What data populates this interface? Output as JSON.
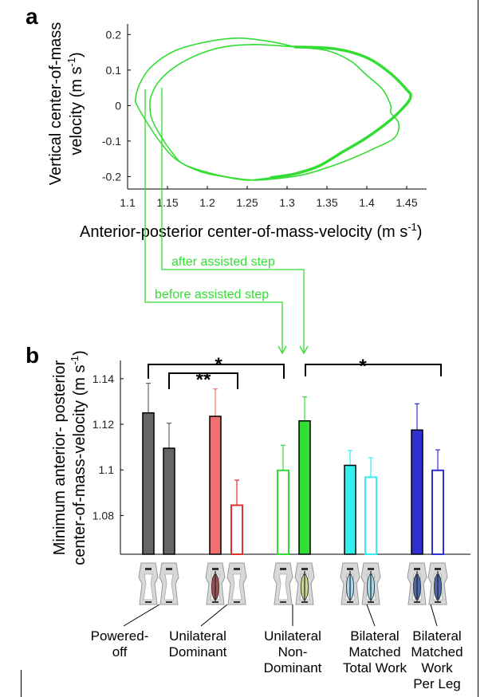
{
  "chart_data": [
    {
      "panel": "a",
      "type": "line",
      "xlabel": "Anterior-posterior center-of-mass-velocity (m s",
      "xlabel_sup": "-1",
      "xlabel_end": ")",
      "ylabel_lines": [
        "Vertical center-of-mass",
        "velocity (m s"
      ],
      "ylabel_sup": "-1",
      "ylabel_end": ")",
      "xticks": [
        "1.1",
        "1.15",
        "1.2",
        "1.25",
        "1.3",
        "1.35",
        "1.4",
        "1.45"
      ],
      "yticks": [
        "0.2",
        "0.1",
        "0",
        "-0.1",
        "-0.2"
      ],
      "xlim": [
        1.1,
        1.475
      ],
      "ylim": [
        -0.235,
        0.23
      ],
      "color": "#33dd33",
      "series": [
        {
          "values": [
            [
              1.31,
              0.165
            ],
            [
              1.36,
              0.16
            ],
            [
              1.4,
              0.135
            ],
            [
              1.43,
              0.09
            ],
            [
              1.45,
              0.045
            ],
            [
              1.455,
              0.028
            ],
            [
              1.45,
              0.005
            ],
            [
              1.43,
              -0.04
            ],
            [
              1.4,
              -0.09
            ],
            [
              1.37,
              -0.13
            ],
            [
              1.34,
              -0.17
            ],
            [
              1.31,
              -0.192
            ],
            [
              1.28,
              -0.203
            ],
            [
              1.25,
              -0.21
            ],
            [
              1.22,
              -0.2
            ],
            [
              1.19,
              -0.185
            ],
            [
              1.16,
              -0.15
            ],
            [
              1.14,
              -0.1
            ],
            [
              1.125,
              -0.05
            ],
            [
              1.112,
              0.0
            ],
            [
              1.11,
              0.02
            ],
            [
              1.115,
              0.06
            ],
            [
              1.13,
              0.11
            ],
            [
              1.16,
              0.155
            ],
            [
              1.2,
              0.18
            ],
            [
              1.24,
              0.19
            ],
            [
              1.28,
              0.18
            ],
            [
              1.31,
              0.165
            ]
          ]
        },
        {
          "values": [
            [
              1.31,
              0.165
            ],
            [
              1.35,
              0.155
            ],
            [
              1.38,
              0.125
            ],
            [
              1.4,
              0.085
            ],
            [
              1.42,
              0.045
            ],
            [
              1.43,
              0.0
            ],
            [
              1.43,
              -0.02
            ],
            [
              1.44,
              -0.05
            ],
            [
              1.435,
              -0.09
            ],
            [
              1.41,
              -0.12
            ],
            [
              1.38,
              -0.15
            ],
            [
              1.35,
              -0.175
            ],
            [
              1.32,
              -0.195
            ],
            [
              1.29,
              -0.205
            ],
            [
              1.26,
              -0.21
            ],
            [
              1.23,
              -0.203
            ],
            [
              1.2,
              -0.188
            ],
            [
              1.17,
              -0.165
            ],
            [
              1.155,
              -0.13
            ],
            [
              1.14,
              -0.08
            ],
            [
              1.13,
              -0.035
            ],
            [
              1.128,
              0.0
            ],
            [
              1.13,
              0.03
            ],
            [
              1.14,
              0.07
            ],
            [
              1.16,
              0.11
            ],
            [
              1.19,
              0.145
            ],
            [
              1.22,
              0.165
            ],
            [
              1.26,
              0.172
            ],
            [
              1.31,
              0.165
            ]
          ]
        }
      ],
      "thick_segments": [
        {
          "values": [
            [
              1.31,
              0.165
            ],
            [
              1.36,
              0.16
            ],
            [
              1.4,
              0.135
            ],
            [
              1.43,
              0.09
            ],
            [
              1.45,
              0.045
            ],
            [
              1.455,
              0.028
            ],
            [
              1.45,
              0.005
            ],
            [
              1.43,
              -0.04
            ],
            [
              1.4,
              -0.09
            ],
            [
              1.37,
              -0.13
            ],
            [
              1.34,
              -0.17
            ],
            [
              1.31,
              -0.192
            ],
            [
              1.28,
              -0.203
            ]
          ]
        }
      ],
      "annotations": {
        "after": "after assisted step",
        "before": "before assisted step"
      }
    },
    {
      "panel": "b",
      "type": "bar",
      "ylabel_lines": [
        "Minimum anterior- posterior",
        "center-of-mass-velocity (m s"
      ],
      "ylabel_sup": "-1",
      "ylabel_end": ")",
      "yticks": [
        "1.14",
        "1.12",
        "1.1",
        "1.08"
      ],
      "ylim": [
        1.063,
        1.148
      ],
      "bars": [
        {
          "value": 1.125,
          "err": 0.013,
          "color": "#666666",
          "filled": true
        },
        {
          "value": 1.1095,
          "err": 0.011,
          "color": "#666666",
          "filled": true
        },
        {
          "value": 1.1235,
          "err": 0.012,
          "color": "#f07070",
          "filled": true
        },
        {
          "value": 1.0845,
          "err": 0.011,
          "color": "#e03030",
          "filled": false
        },
        {
          "value": 1.0998,
          "err": 0.011,
          "color": "#33dd33",
          "filled": false
        },
        {
          "value": 1.1215,
          "err": 0.0105,
          "color": "#33dd33",
          "filled": true
        },
        {
          "value": 1.102,
          "err": 0.0065,
          "color": "#33eeee",
          "filled": true
        },
        {
          "value": 1.0968,
          "err": 0.0085,
          "color": "#33eeee",
          "filled": false
        },
        {
          "value": 1.1175,
          "err": 0.0115,
          "color": "#3030d0",
          "filled": true
        },
        {
          "value": 1.0998,
          "err": 0.009,
          "color": "#3030d0",
          "filled": false
        }
      ],
      "significance": [
        {
          "label": "*"
        },
        {
          "label": "**"
        },
        {
          "label": "*"
        }
      ],
      "groups": [
        {
          "lines": [
            "Powered-",
            "off"
          ]
        },
        {
          "lines": [
            "Unilateral",
            "Dominant"
          ]
        },
        {
          "lines": [
            "Unilateral",
            "Non-",
            "Dominant"
          ]
        },
        {
          "lines": [
            "Bilateral",
            "Matched",
            "Total Work"
          ]
        },
        {
          "lines": [
            "Bilateral",
            "Matched",
            "Work",
            "Per Leg"
          ]
        }
      ],
      "device_colors": {
        "powered_off": "#dddddd",
        "unilateral_dominant": "#a05050",
        "unilateral_nondominant": "#c8d890",
        "bilateral_total": "#a8d8f0",
        "bilateral_per_leg": "#4a6aaa"
      }
    }
  ]
}
